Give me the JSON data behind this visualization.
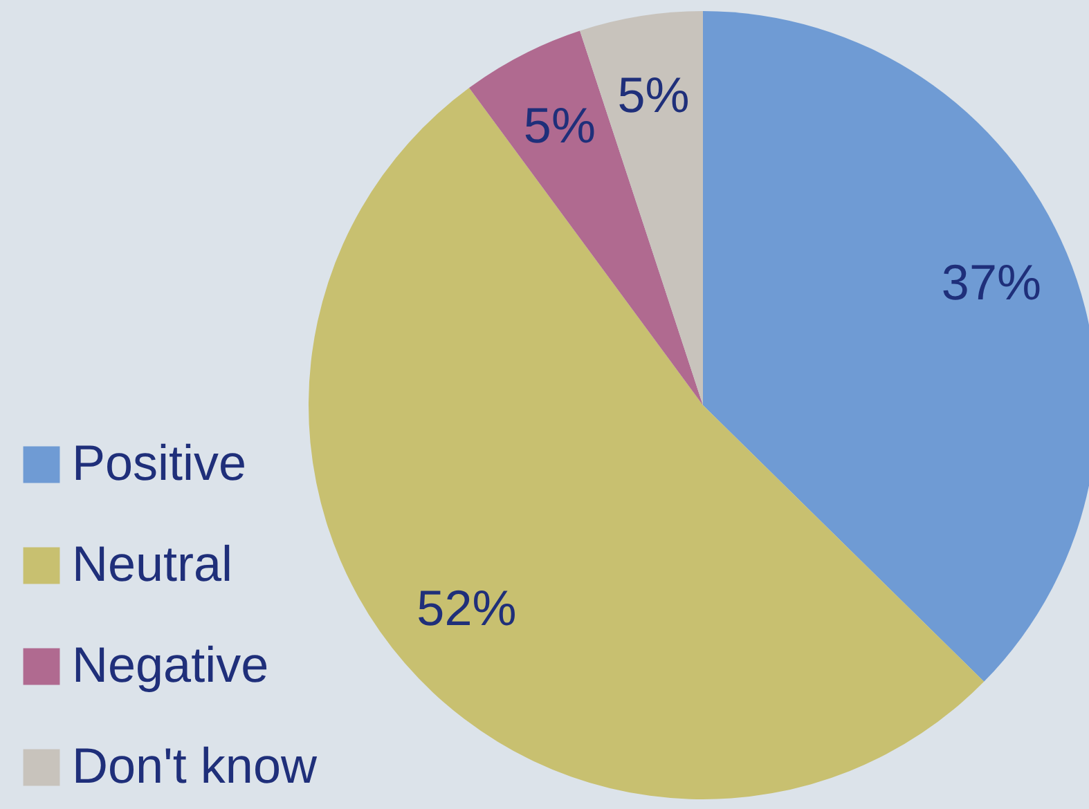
{
  "chart_data": {
    "type": "pie",
    "categories": [
      "Positive",
      "Neutral",
      "Negative",
      "Don't know"
    ],
    "values": [
      37,
      52,
      5,
      5
    ],
    "colors": [
      "#6f9bd4",
      "#c8c070",
      "#b06a90",
      "#c8c3bc"
    ],
    "value_labels": [
      "37%",
      "52%",
      "5%",
      "5%"
    ],
    "legend": "left"
  }
}
